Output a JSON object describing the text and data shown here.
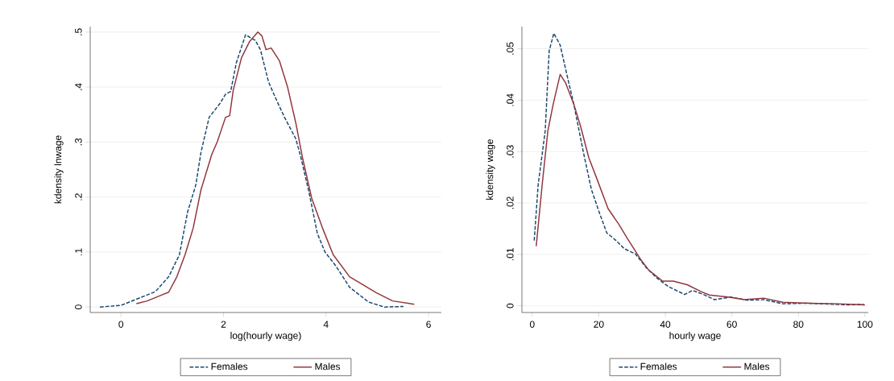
{
  "chart_data": [
    {
      "type": "line",
      "xlabel": "log(hourly wage)",
      "ylabel": "kdensity lnwage",
      "xlim": [
        -0.6,
        6.25
      ],
      "ylim": [
        -0.01,
        0.51
      ],
      "xticks": [
        0,
        2,
        4,
        6
      ],
      "yticks": [
        0,
        {
          "value": 0.1,
          "label": ".1"
        },
        {
          "value": 0.2,
          "label": ".2"
        },
        {
          "value": 0.3,
          "label": ".3"
        },
        {
          "value": 0.4,
          "label": ".4"
        },
        {
          "value": 0.5,
          "label": ".5"
        }
      ],
      "grid": "y",
      "legend": "bottom",
      "series": [
        {
          "name": "Females",
          "color": "#1a476f",
          "line_style": "dashed",
          "x": [
            -0.41,
            0,
            0.35,
            0.67,
            0.93,
            1.14,
            1.3,
            1.46,
            1.56,
            1.72,
            1.93,
            2.04,
            2.14,
            2.25,
            2.43,
            2.62,
            2.72,
            2.88,
            3.04,
            3.19,
            3.41,
            3.51,
            3.67,
            3.83,
            3.98,
            4.19,
            4.46,
            4.83,
            5.14,
            5.51
          ],
          "values": [
            0.0,
            0.003,
            0.016,
            0.028,
            0.055,
            0.095,
            0.173,
            0.222,
            0.281,
            0.345,
            0.37,
            0.387,
            0.392,
            0.444,
            0.495,
            0.485,
            0.468,
            0.409,
            0.375,
            0.345,
            0.306,
            0.272,
            0.208,
            0.134,
            0.1,
            0.075,
            0.036,
            0.009,
            0.0,
            0.001
          ]
        },
        {
          "name": "Males",
          "color": "#90353b",
          "line_style": "solid",
          "x": [
            0.3,
            0.51,
            0.77,
            0.93,
            1.09,
            1.25,
            1.41,
            1.56,
            1.77,
            1.88,
            2.04,
            2.12,
            2.19,
            2.35,
            2.51,
            2.67,
            2.75,
            2.83,
            2.93,
            3.09,
            3.25,
            3.41,
            3.54,
            3.72,
            3.93,
            4.14,
            4.46,
            4.98,
            5.3,
            5.72
          ],
          "values": [
            0.006,
            0.011,
            0.021,
            0.027,
            0.055,
            0.095,
            0.144,
            0.213,
            0.277,
            0.301,
            0.345,
            0.348,
            0.394,
            0.453,
            0.483,
            0.5,
            0.493,
            0.468,
            0.471,
            0.448,
            0.4,
            0.335,
            0.272,
            0.198,
            0.144,
            0.095,
            0.055,
            0.026,
            0.011,
            0.005
          ]
        }
      ]
    },
    {
      "type": "line",
      "xlabel": "hourly wage",
      "ylabel": "kdensity wage",
      "xlim": [
        -3.1,
        101
      ],
      "ylim": [
        -0.0013,
        0.0543
      ],
      "xticks": [
        0,
        20,
        40,
        60,
        80,
        100
      ],
      "yticks": [
        0,
        {
          "value": 0.01,
          "label": ".01"
        },
        {
          "value": 0.02,
          "label": ".02"
        },
        {
          "value": 0.03,
          "label": ".03"
        },
        {
          "value": 0.04,
          "label": ".04"
        },
        {
          "value": 0.05,
          "label": ".05"
        }
      ],
      "grid": "y",
      "legend": "bottom",
      "series": [
        {
          "name": "Females",
          "color": "#1a476f",
          "line_style": "dashed",
          "x": [
            0.6,
            1.8,
            3.9,
            5.1,
            6.5,
            8.4,
            10.4,
            12.5,
            15.4,
            17.8,
            20.3,
            22.4,
            25.2,
            27.7,
            31.0,
            34.3,
            37.5,
            40.8,
            45.8,
            48.2,
            51.5,
            54.8,
            59.7,
            64.7,
            69.6,
            75.3,
            82.7,
            91.0,
            95.1,
            99.6
          ],
          "values": [
            0.0127,
            0.0236,
            0.034,
            0.0496,
            0.053,
            0.0507,
            0.045,
            0.0392,
            0.0298,
            0.0226,
            0.0179,
            0.0142,
            0.0127,
            0.0111,
            0.0101,
            0.0074,
            0.0054,
            0.0038,
            0.0022,
            0.003,
            0.0022,
            0.0012,
            0.0017,
            0.0011,
            0.0012,
            0.0004,
            0.0005,
            0.0003,
            0.0002,
            0.0003
          ]
        },
        {
          "name": "Males",
          "color": "#90353b",
          "line_style": "solid",
          "x": [
            1.2,
            3.0,
            4.7,
            6.3,
            8.4,
            10.0,
            12.5,
            14.5,
            17.0,
            19.5,
            22.8,
            26.1,
            28.5,
            32.6,
            35.1,
            39.2,
            42.4,
            46.6,
            50.7,
            53.2,
            58.9,
            63.8,
            69.6,
            75.3,
            83.5,
            91.8,
            100
          ],
          "values": [
            0.0116,
            0.0236,
            0.034,
            0.0392,
            0.045,
            0.0434,
            0.0392,
            0.035,
            0.0288,
            0.0246,
            0.0189,
            0.0158,
            0.0132,
            0.009,
            0.0069,
            0.0048,
            0.0048,
            0.0041,
            0.0028,
            0.0021,
            0.0017,
            0.0012,
            0.0015,
            0.0007,
            0.0005,
            0.0004,
            0.0002
          ]
        }
      ]
    }
  ]
}
